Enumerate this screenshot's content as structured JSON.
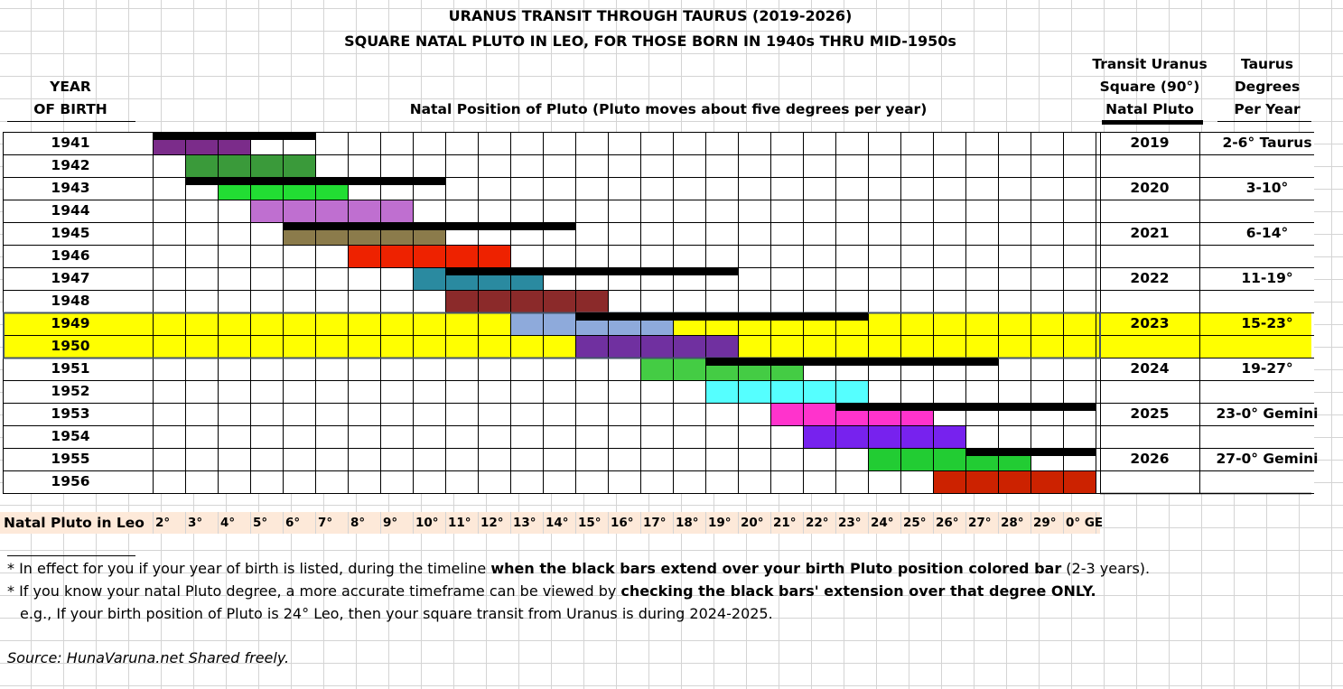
{
  "titles": {
    "line1": "URANUS TRANSIT THROUGH TAURUS (2019-2026)",
    "line2": "SQUARE NATAL PLUTO IN LEO, FOR THOSE BORN IN 1940s THRU MID-1950s"
  },
  "headers": {
    "year_line1": "YEAR",
    "year_line2": "OF BIRTH",
    "natal": "Natal Position of Pluto (Pluto moves about five degrees per year)",
    "transit_line1": "Transit Uranus",
    "transit_line2": "Square (90°)",
    "transit_line3": "Natal Pluto",
    "taurus_line1": "Taurus",
    "taurus_line2": "Degrees",
    "taurus_line3": "Per Year"
  },
  "chart_data": {
    "type": "table",
    "degree_ticks": [
      "2°",
      "3°",
      "4°",
      "5°",
      "6°",
      "7°",
      "8°",
      "9°",
      "10°",
      "11°",
      "12°",
      "13°",
      "14°",
      "15°",
      "16°",
      "17°",
      "18°",
      "19°",
      "20°",
      "21°",
      "22°",
      "23°",
      "24°",
      "25°",
      "26°",
      "27°",
      "28°",
      "29°",
      "0° GE"
    ],
    "axis_title": "Natal Pluto in Leo",
    "birth_years": [
      "1941",
      "1942",
      "1943",
      "1944",
      "1945",
      "1946",
      "1947",
      "1948",
      "1949",
      "1950",
      "1951",
      "1952",
      "1953",
      "1954",
      "1955",
      "1956"
    ],
    "highlight_years": [
      "1949",
      "1950"
    ],
    "pluto_bars": [
      {
        "year": "1941",
        "start_degree": 2,
        "end_degree": 5,
        "color": "#7b2c8a"
      },
      {
        "year": "1942",
        "start_degree": 3,
        "end_degree": 7,
        "color": "#3a9a3a"
      },
      {
        "year": "1943",
        "start_degree": 4,
        "end_degree": 8,
        "color": "#22dd33"
      },
      {
        "year": "1944",
        "start_degree": 5,
        "end_degree": 10,
        "color": "#bf6fd0"
      },
      {
        "year": "1945",
        "start_degree": 6,
        "end_degree": 11,
        "color": "#8b7b4b"
      },
      {
        "year": "1946",
        "start_degree": 8,
        "end_degree": 13,
        "color": "#ee2200"
      },
      {
        "year": "1947",
        "start_degree": 10,
        "end_degree": 14,
        "color": "#2a8aa0"
      },
      {
        "year": "1948",
        "start_degree": 11,
        "end_degree": 16,
        "color": "#8b2a2a"
      },
      {
        "year": "1949",
        "start_degree": 13,
        "end_degree": 18,
        "color": "#8eaadb"
      },
      {
        "year": "1950",
        "start_degree": 15,
        "end_degree": 20,
        "color": "#7030a0"
      },
      {
        "year": "1951",
        "start_degree": 17,
        "end_degree": 22,
        "color": "#44cc44"
      },
      {
        "year": "1952",
        "start_degree": 19,
        "end_degree": 24,
        "color": "#55ffff"
      },
      {
        "year": "1953",
        "start_degree": 21,
        "end_degree": 26,
        "color": "#ff33cc"
      },
      {
        "year": "1954",
        "start_degree": 22,
        "end_degree": 27,
        "color": "#7722ee"
      },
      {
        "year": "1955",
        "start_degree": 24,
        "end_degree": 29,
        "color": "#22cc33"
      },
      {
        "year": "1956",
        "start_degree": 26,
        "end_degree": 31,
        "color": "#cc2200"
      }
    ],
    "uranus_transits": [
      {
        "transit_year": "2019",
        "taurus_degrees": "2-6° Taurus",
        "start_degree": 2,
        "end_degree": 7,
        "row": "1941"
      },
      {
        "transit_year": "2020",
        "taurus_degrees": "3-10°",
        "start_degree": 3,
        "end_degree": 11,
        "row": "1943"
      },
      {
        "transit_year": "2021",
        "taurus_degrees": "6-14°",
        "start_degree": 6,
        "end_degree": 15,
        "row": "1945"
      },
      {
        "transit_year": "2022",
        "taurus_degrees": "11-19°",
        "start_degree": 11,
        "end_degree": 20,
        "row": "1947"
      },
      {
        "transit_year": "2023",
        "taurus_degrees": "15-23°",
        "start_degree": 15,
        "end_degree": 24,
        "row": "1949"
      },
      {
        "transit_year": "2024",
        "taurus_degrees": "19-27°",
        "start_degree": 19,
        "end_degree": 28,
        "row": "1951"
      },
      {
        "transit_year": "2025",
        "taurus_degrees": "23-0° Gemini",
        "start_degree": 23,
        "end_degree": 31,
        "row": "1953"
      },
      {
        "transit_year": "2026",
        "taurus_degrees": "27-0° Gemini",
        "start_degree": 27,
        "end_degree": 31,
        "row": "1955"
      }
    ]
  },
  "notes": {
    "note1_plain": "* In effect for you if your year of birth is listed, during the timeline ",
    "note1_bold": "when the black bars extend over your birth Pluto position colored bar",
    "note1_tail": " (2-3 years).",
    "note2_plain": "* If you know your natal Pluto degree, a more accurate timeframe can be viewed by ",
    "note2_bold": "checking the black bars' extension over that degree ONLY.",
    "note3": "e.g., If your birth position of Pluto is 24° Leo, then your square transit from Uranus is during 2024-2025."
  },
  "source": "Source:  HunaVaruna.net   Shared freely.",
  "colors": {
    "highlight": "#ffff00",
    "axis_band": "#fde9d9",
    "transit_bar": "#000000"
  }
}
